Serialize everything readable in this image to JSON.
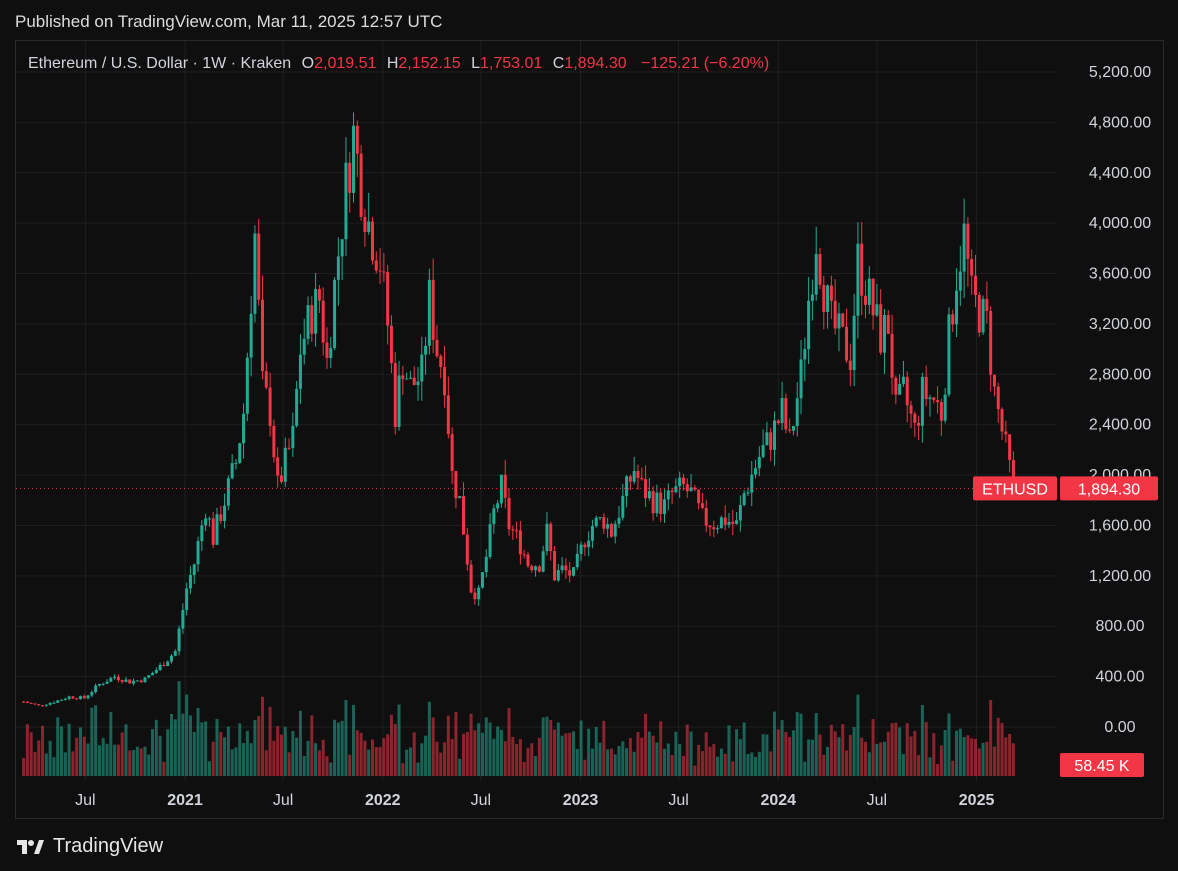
{
  "header": {
    "published": "Published on TradingView.com, Mar 11, 2025 12:57 UTC"
  },
  "legend": {
    "symbol": "Ethereum / U.S. Dollar · 1W · Kraken",
    "o_label": "O",
    "o_value": "2,019.51",
    "h_label": "H",
    "h_value": "2,152.15",
    "l_label": "L",
    "l_value": "1,753.01",
    "c_label": "C",
    "c_value": "1,894.30",
    "change": "−125.21 (−6.20%)"
  },
  "price_tag": {
    "symbol": "ETHUSD",
    "price": "1,894.30"
  },
  "volume_tag": "58.45 K",
  "brand": "TradingView",
  "colors": {
    "up": "#22ab94",
    "down": "#f23645",
    "grid": "#1f1f1f",
    "axis_text": "#d1d4dc",
    "background": "#0f0f0f"
  },
  "chart_data": {
    "type": "candlestick",
    "title": "Ethereum / U.S. Dollar · 1W · Kraken",
    "ylim": [
      -50,
      5300
    ],
    "y_ticks": [
      0,
      400,
      800,
      1200,
      1600,
      2000,
      2400,
      2800,
      3200,
      3600,
      4000,
      4400,
      4800,
      5200
    ],
    "y_tick_labels": [
      "0.00",
      "400.00",
      "800.00",
      "1,200.00",
      "1,600.00",
      "2,000.00",
      "2,400.00",
      "2,800.00",
      "3,200.00",
      "3,600.00",
      "4,000.00",
      "4,400.00",
      "4,800.00",
      "5,200.00"
    ],
    "x_ticks": [
      {
        "label": "Jul",
        "date": "2020-07-01"
      },
      {
        "label": "2021",
        "date": "2021-01-01"
      },
      {
        "label": "Jul",
        "date": "2021-07-01"
      },
      {
        "label": "2022",
        "date": "2022-01-01"
      },
      {
        "label": "Jul",
        "date": "2022-07-01"
      },
      {
        "label": "2023",
        "date": "2023-01-01"
      },
      {
        "label": "Jul",
        "date": "2023-07-01"
      },
      {
        "label": "2024",
        "date": "2024-01-01"
      },
      {
        "label": "Jul",
        "date": "2024-07-01"
      },
      {
        "label": "2025",
        "date": "2025-01-01"
      }
    ],
    "last_price": 1894.3,
    "grid": true,
    "series": [
      {
        "name": "ETHUSD",
        "points": [
          [
            "2020-03-09",
            200
          ],
          [
            "2020-04-06",
            170
          ],
          [
            "2020-05-04",
            200
          ],
          [
            "2020-06-01",
            240
          ],
          [
            "2020-06-29",
            230
          ],
          [
            "2020-07-27",
            340
          ],
          [
            "2020-08-24",
            400
          ],
          [
            "2020-09-21",
            360
          ],
          [
            "2020-10-19",
            380
          ],
          [
            "2020-11-16",
            480
          ],
          [
            "2020-12-14",
            600
          ],
          [
            "2021-01-04",
            1100
          ],
          [
            "2021-01-18",
            1300
          ],
          [
            "2021-02-08",
            1750
          ],
          [
            "2021-02-22",
            1500
          ],
          [
            "2021-03-15",
            1800
          ],
          [
            "2021-04-05",
            2100
          ],
          [
            "2021-04-19",
            2500
          ],
          [
            "2021-05-10",
            3900
          ],
          [
            "2021-05-24",
            2700
          ],
          [
            "2021-06-07",
            2500
          ],
          [
            "2021-06-21",
            1900
          ],
          [
            "2021-07-05",
            2100
          ],
          [
            "2021-07-19",
            2300
          ],
          [
            "2021-08-02",
            3000
          ],
          [
            "2021-08-23",
            3300
          ],
          [
            "2021-09-06",
            3400
          ],
          [
            "2021-09-20",
            2900
          ],
          [
            "2021-10-04",
            3500
          ],
          [
            "2021-10-25",
            4300
          ],
          [
            "2021-11-08",
            4700
          ],
          [
            "2021-11-22",
            4300
          ],
          [
            "2021-12-06",
            4000
          ],
          [
            "2021-12-27",
            3700
          ],
          [
            "2022-01-10",
            3200
          ],
          [
            "2022-01-24",
            2500
          ],
          [
            "2022-02-07",
            2900
          ],
          [
            "2022-02-21",
            2700
          ],
          [
            "2022-03-14",
            2800
          ],
          [
            "2022-03-28",
            3400
          ],
          [
            "2022-04-11",
            3000
          ],
          [
            "2022-04-25",
            2800
          ],
          [
            "2022-05-09",
            2000
          ],
          [
            "2022-05-23",
            1800
          ],
          [
            "2022-06-13",
            1100
          ],
          [
            "2022-06-27",
            1050
          ],
          [
            "2022-07-11",
            1350
          ],
          [
            "2022-07-25",
            1700
          ],
          [
            "2022-08-08",
            1900
          ],
          [
            "2022-08-22",
            1600
          ],
          [
            "2022-09-12",
            1450
          ],
          [
            "2022-09-26",
            1300
          ],
          [
            "2022-10-17",
            1300
          ],
          [
            "2022-10-31",
            1550
          ],
          [
            "2022-11-14",
            1200
          ],
          [
            "2022-11-28",
            1250
          ],
          [
            "2022-12-19",
            1200
          ],
          [
            "2023-01-09",
            1500
          ],
          [
            "2023-01-23",
            1600
          ],
          [
            "2023-02-13",
            1650
          ],
          [
            "2023-02-27",
            1550
          ],
          [
            "2023-03-20",
            1800
          ],
          [
            "2023-04-10",
            2050
          ],
          [
            "2023-04-24",
            1900
          ],
          [
            "2023-05-15",
            1800
          ],
          [
            "2023-06-05",
            1750
          ],
          [
            "2023-06-19",
            1850
          ],
          [
            "2023-07-10",
            1900
          ],
          [
            "2023-07-24",
            1850
          ],
          [
            "2023-08-14",
            1650
          ],
          [
            "2023-09-04",
            1620
          ],
          [
            "2023-09-25",
            1650
          ],
          [
            "2023-10-16",
            1600
          ],
          [
            "2023-10-30",
            1850
          ],
          [
            "2023-11-13",
            2000
          ],
          [
            "2023-11-27",
            2150
          ],
          [
            "2023-12-18",
            2300
          ],
          [
            "2024-01-08",
            2500
          ],
          [
            "2024-01-22",
            2250
          ],
          [
            "2024-02-12",
            2800
          ],
          [
            "2024-02-26",
            3400
          ],
          [
            "2024-03-11",
            3900
          ],
          [
            "2024-03-25",
            3500
          ],
          [
            "2024-04-08",
            3200
          ],
          [
            "2024-04-22",
            3100
          ],
          [
            "2024-05-13",
            2950
          ],
          [
            "2024-05-27",
            3700
          ],
          [
            "2024-06-10",
            3500
          ],
          [
            "2024-06-24",
            3300
          ],
          [
            "2024-07-08",
            3100
          ],
          [
            "2024-07-22",
            3200
          ],
          [
            "2024-08-05",
            2500
          ],
          [
            "2024-08-19",
            2650
          ],
          [
            "2024-09-09",
            2350
          ],
          [
            "2024-09-23",
            2650
          ],
          [
            "2024-10-14",
            2600
          ],
          [
            "2024-10-28",
            2500
          ],
          [
            "2024-11-11",
            3100
          ],
          [
            "2024-11-25",
            3600
          ],
          [
            "2024-12-09",
            3900
          ],
          [
            "2024-12-23",
            3400
          ],
          [
            "2025-01-06",
            3300
          ],
          [
            "2025-01-20",
            3200
          ],
          [
            "2025-02-03",
            2650
          ],
          [
            "2025-02-24",
            2200
          ],
          [
            "2025-03-10",
            1894.3
          ]
        ]
      }
    ],
    "volume_note": "Volume bars along bottom"
  }
}
